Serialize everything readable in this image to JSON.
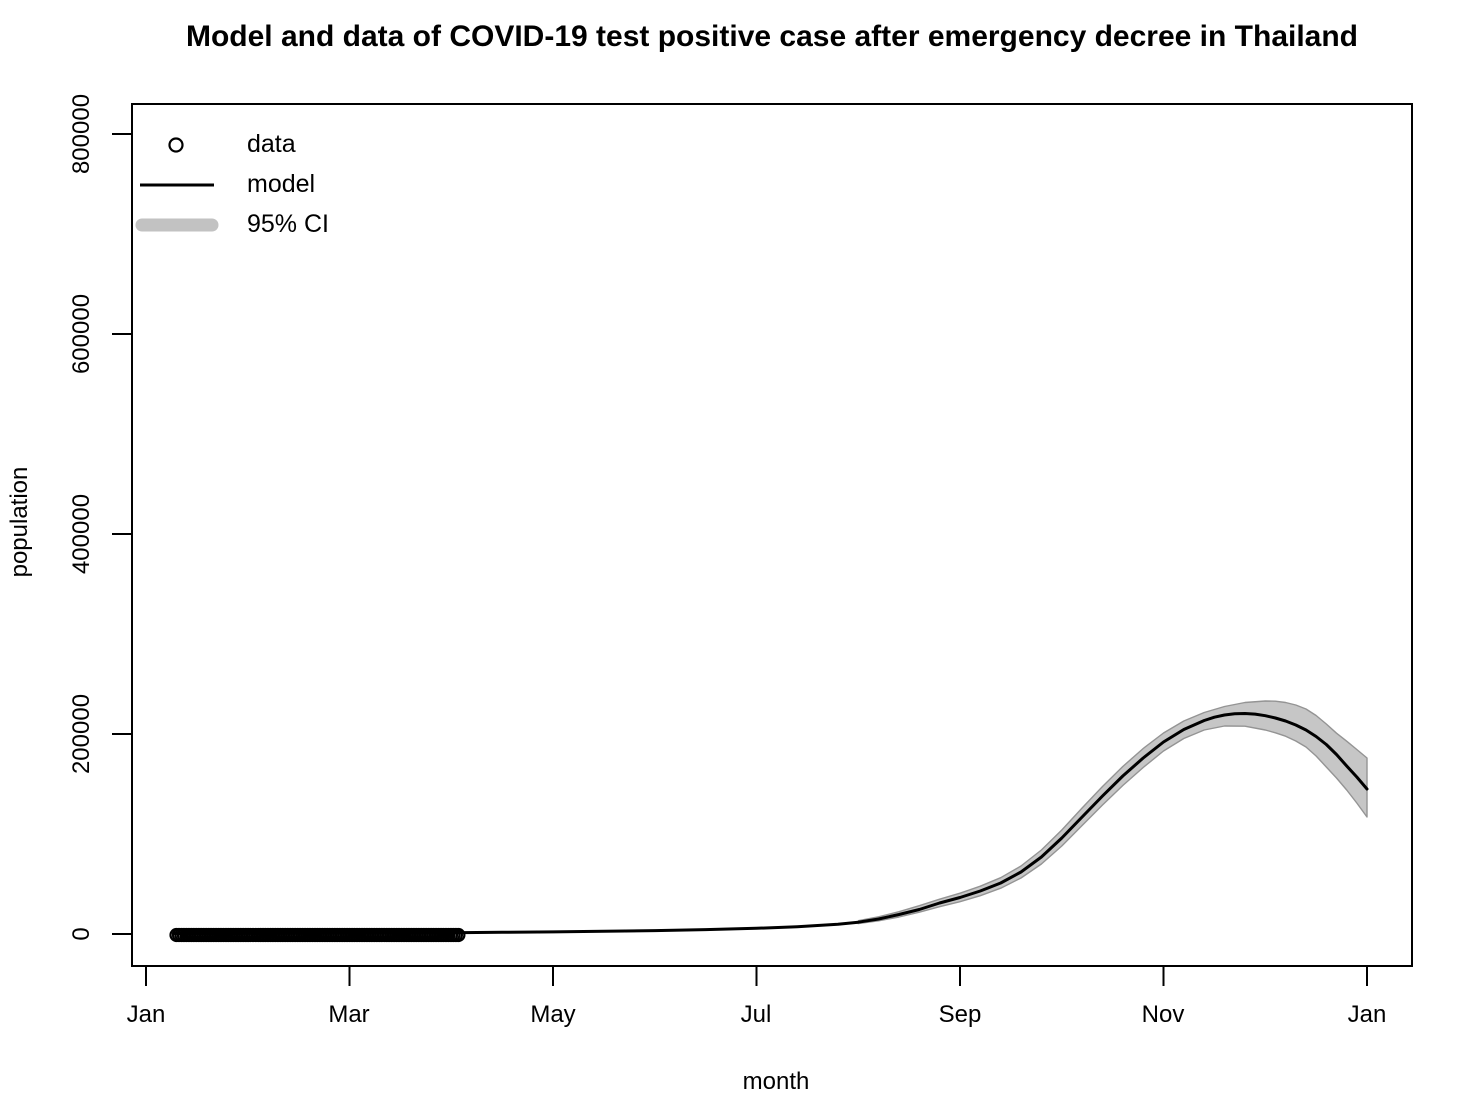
{
  "chart_data": {
    "type": "line",
    "title": "Model and data of COVID-19 test positive case after emergency decree in Thailand",
    "xlabel": "month",
    "ylabel": "population",
    "x_tick_labels": [
      "Jan",
      "Mar",
      "May",
      "Jul",
      "Sep",
      "Nov",
      "Jan"
    ],
    "x_tick_months": [
      0,
      2,
      4,
      6,
      8,
      10,
      12
    ],
    "y_tick_labels": [
      "0",
      "200000",
      "400000",
      "600000",
      "800000"
    ],
    "y_tick_values": [
      0,
      200000,
      400000,
      600000,
      800000
    ],
    "xlim_months": [
      -0.14,
      12.44
    ],
    "ylim": [
      -32000,
      830000
    ],
    "grid": false,
    "legend": {
      "position": "top-left",
      "items": [
        {
          "symbol": "open-circle",
          "label": "data"
        },
        {
          "symbol": "solid-line",
          "label": "model"
        },
        {
          "symbol": "thick-gray-band",
          "label": "95% CI"
        }
      ]
    },
    "colors": {
      "model": "#000000",
      "data_points": "#000000",
      "ci_fill": "#c6c6c6",
      "ci_edge": "#949494",
      "legend_ci": "#c2c2c2",
      "axis": "#000000",
      "background": "#ffffff"
    },
    "data_points": {
      "name": "data",
      "shape": "open-circle",
      "y_value": 0,
      "x_start_month": 0.3,
      "x_end_month": 3.07,
      "count": 115
    },
    "series": [
      {
        "name": "model",
        "type": "line",
        "points": [
          [
            0.27,
            500
          ],
          [
            1.0,
            650
          ],
          [
            2.0,
            850
          ],
          [
            3.0,
            1300
          ],
          [
            3.5,
            1700
          ],
          [
            4.0,
            2100
          ],
          [
            4.5,
            2700
          ],
          [
            5.0,
            3400
          ],
          [
            5.5,
            4400
          ],
          [
            6.0,
            5700
          ],
          [
            6.4,
            7300
          ],
          [
            6.8,
            9800
          ],
          [
            7.0,
            11800
          ],
          [
            7.2,
            15000
          ],
          [
            7.4,
            19500
          ],
          [
            7.6,
            24500
          ],
          [
            7.8,
            31000
          ],
          [
            8.0,
            36500
          ],
          [
            8.2,
            43000
          ],
          [
            8.4,
            51000
          ],
          [
            8.6,
            62000
          ],
          [
            8.8,
            77000
          ],
          [
            9.0,
            96000
          ],
          [
            9.2,
            117000
          ],
          [
            9.4,
            138000
          ],
          [
            9.6,
            158000
          ],
          [
            9.8,
            176000
          ],
          [
            10.0,
            192000
          ],
          [
            10.2,
            204500
          ],
          [
            10.4,
            213500
          ],
          [
            10.5,
            216800
          ],
          [
            10.6,
            219000
          ],
          [
            10.7,
            220200
          ],
          [
            10.8,
            220500
          ],
          [
            10.9,
            219900
          ],
          [
            11.0,
            218300
          ],
          [
            11.1,
            216000
          ],
          [
            11.2,
            213000
          ],
          [
            11.3,
            209000
          ],
          [
            11.4,
            204000
          ],
          [
            11.5,
            197500
          ],
          [
            11.6,
            189500
          ],
          [
            11.7,
            179500
          ],
          [
            11.8,
            168000
          ],
          [
            11.9,
            157000
          ],
          [
            12.0,
            145000
          ]
        ]
      },
      {
        "name": "95% CI",
        "type": "band",
        "upper": [
          [
            7.0,
            13300
          ],
          [
            7.2,
            17200
          ],
          [
            7.4,
            22300
          ],
          [
            7.6,
            28300
          ],
          [
            7.8,
            34800
          ],
          [
            8.0,
            40800
          ],
          [
            8.2,
            47800
          ],
          [
            8.4,
            56300
          ],
          [
            8.6,
            68000
          ],
          [
            8.8,
            84000
          ],
          [
            9.0,
            104000
          ],
          [
            9.2,
            126000
          ],
          [
            9.4,
            147500
          ],
          [
            9.6,
            167500
          ],
          [
            9.8,
            185500
          ],
          [
            10.0,
            201000
          ],
          [
            10.2,
            213000
          ],
          [
            10.4,
            221500
          ],
          [
            10.6,
            227500
          ],
          [
            10.8,
            231500
          ],
          [
            11.0,
            233000
          ],
          [
            11.1,
            232800
          ],
          [
            11.2,
            231500
          ],
          [
            11.3,
            229000
          ],
          [
            11.4,
            225000
          ],
          [
            11.5,
            218500
          ],
          [
            11.6,
            210000
          ],
          [
            11.7,
            200800
          ],
          [
            11.8,
            192800
          ],
          [
            11.9,
            184500
          ],
          [
            12.0,
            176000
          ]
        ],
        "lower": [
          [
            7.0,
            10400
          ],
          [
            7.2,
            13200
          ],
          [
            7.4,
            17000
          ],
          [
            7.6,
            21800
          ],
          [
            7.8,
            27300
          ],
          [
            8.0,
            32300
          ],
          [
            8.2,
            38300
          ],
          [
            8.4,
            45800
          ],
          [
            8.6,
            56000
          ],
          [
            8.8,
            70000
          ],
          [
            9.0,
            88000
          ],
          [
            9.2,
            108500
          ],
          [
            9.4,
            129000
          ],
          [
            9.6,
            148500
          ],
          [
            9.8,
            166500
          ],
          [
            10.0,
            183000
          ],
          [
            10.2,
            195500
          ],
          [
            10.4,
            204000
          ],
          [
            10.6,
            208000
          ],
          [
            10.8,
            207800
          ],
          [
            11.0,
            204000
          ],
          [
            11.1,
            201200
          ],
          [
            11.2,
            197800
          ],
          [
            11.3,
            193000
          ],
          [
            11.4,
            187000
          ],
          [
            11.5,
            178000
          ],
          [
            11.6,
            167000
          ],
          [
            11.7,
            156000
          ],
          [
            11.8,
            144000
          ],
          [
            11.9,
            131000
          ],
          [
            12.0,
            117000
          ]
        ]
      }
    ]
  }
}
